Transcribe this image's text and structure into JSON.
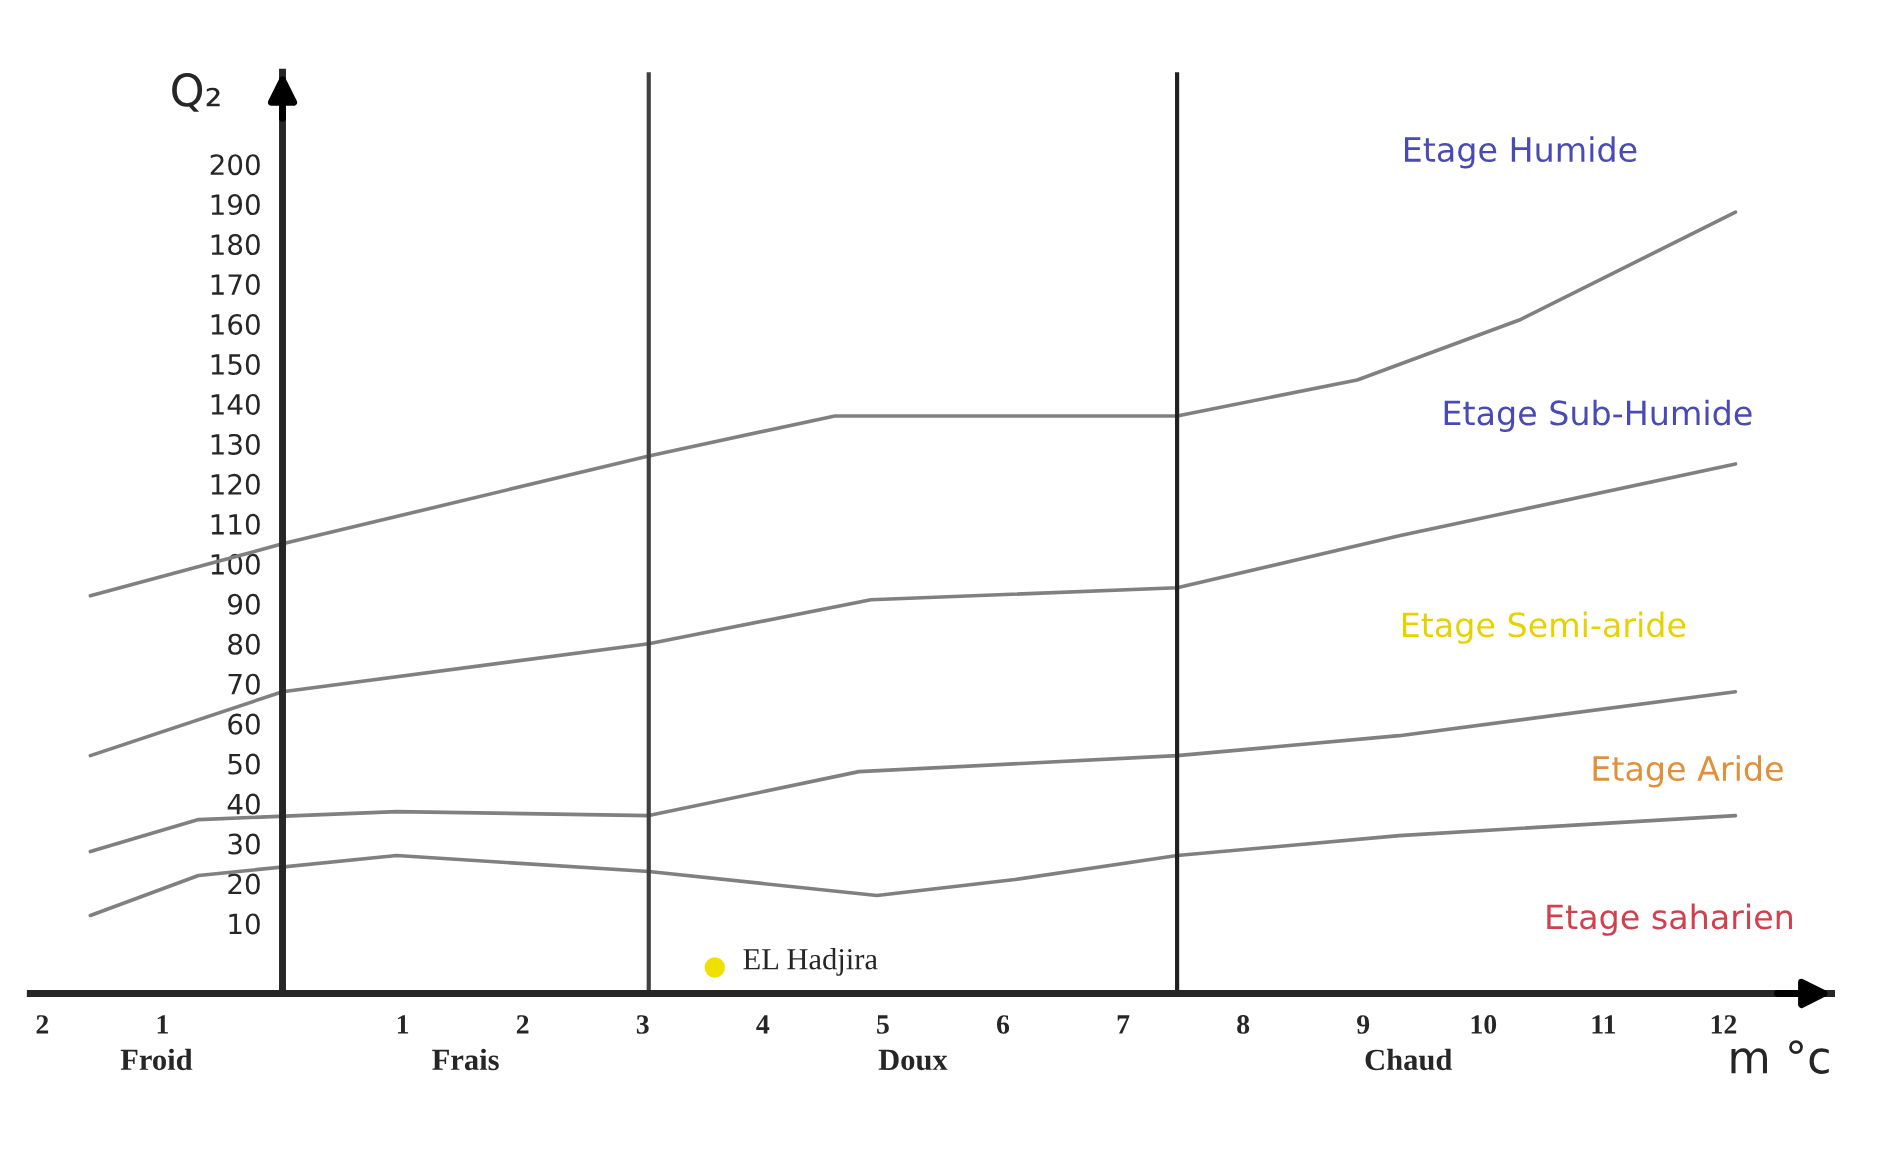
{
  "chart_data": {
    "type": "line",
    "ylabel": "Q₂",
    "xlabel": "m °c",
    "xlim": [
      -2.1,
      12.9
    ],
    "ylim": [
      -7.5,
      223
    ],
    "xticks": [
      {
        "value": -2,
        "label": "2"
      },
      {
        "value": -1,
        "label": "1"
      },
      1,
      2,
      3,
      4,
      5,
      6,
      7,
      8,
      9,
      10,
      11,
      12
    ],
    "yticks": [
      10,
      20,
      30,
      40,
      50,
      60,
      70,
      80,
      90,
      100,
      110,
      120,
      130,
      140,
      150,
      160,
      170,
      180,
      190,
      200
    ],
    "grid": false,
    "line_style": "solid",
    "series": [
      {
        "color": "#808080",
        "x": [
          -1.6,
          0,
          3.05,
          4.6,
          7.45,
          8.95,
          10.3,
          12.1
        ],
        "values": [
          92,
          105,
          127,
          137,
          137,
          146,
          161,
          188
        ]
      },
      {
        "color": "#808080",
        "x": [
          -1.6,
          0,
          3.05,
          4.9,
          7.45,
          9.3,
          12.1
        ],
        "values": [
          52,
          68,
          80,
          91,
          94,
          107,
          125
        ]
      },
      {
        "color": "#808080",
        "x": [
          -1.6,
          -0.7,
          0.95,
          3.05,
          4.8,
          7.45,
          9.3,
          12.1
        ],
        "values": [
          28,
          36,
          38,
          37,
          48,
          52,
          57,
          68
        ]
      },
      {
        "color": "#808080",
        "x": [
          -1.6,
          -0.7,
          0.95,
          3.05,
          4.95,
          6.1,
          7.45,
          9.3,
          12.1
        ],
        "values": [
          12,
          22,
          27,
          23,
          17,
          21,
          27,
          32,
          37
        ]
      },
      {
        "type": "scatter",
        "name": "EL Hadjira",
        "color": "#f0e000",
        "x": [
          3.6
        ],
        "values": [
          -1
        ]
      }
    ],
    "ref_lines": [
      {
        "axis": "x",
        "value": 3.05,
        "color": "#404040"
      },
      {
        "axis": "x",
        "value": 7.45,
        "color": "#202020"
      }
    ],
    "annotations": [
      "Froid",
      "Frais",
      "Doux",
      "Chaud",
      "Etage Humide",
      "Etage Sub-Humide",
      "Etage Semi-aride",
      "Etage Aride",
      "Etage saharien"
    ]
  }
}
